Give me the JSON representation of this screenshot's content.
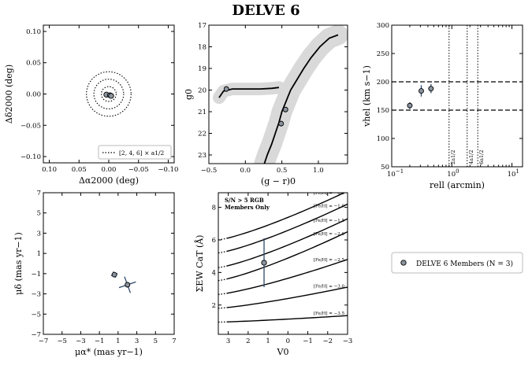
{
  "figure_title": "DELVE 6",
  "chart_data": [
    {
      "type": "scatter",
      "name": "spatial",
      "xlabel": "Δα2000 (deg)",
      "ylabel": "Δδ2000 (deg)",
      "xlim": [
        0.11,
        -0.11
      ],
      "ylim": [
        -0.11,
        0.11
      ],
      "xticks": [
        0.1,
        0.05,
        0.0,
        -0.05,
        -0.1
      ],
      "xtick_labels": [
        "0.10",
        "0.05",
        "0.00",
        "−0.05",
        "−0.10"
      ],
      "yticks": [
        0.1,
        0.05,
        0.0,
        -0.05,
        -0.1
      ],
      "ytick_labels": [
        "0.10",
        "0.05",
        "0.00",
        "−0.05",
        "−0.10"
      ],
      "points": [
        {
          "x": 0.004,
          "y": -0.001
        },
        {
          "x": -0.002,
          "y": -0.002
        },
        {
          "x": -0.004,
          "y": -0.003
        }
      ],
      "circle_radii": [
        0.0125,
        0.025,
        0.0375
      ],
      "legend": "[2, 4, 6] × a1/2"
    },
    {
      "type": "scatter",
      "name": "cmd",
      "xlabel": "(g − r)0",
      "ylabel": "g0",
      "xlim": [
        -0.5,
        1.4
      ],
      "ylim": [
        23.4,
        17.0
      ],
      "xticks": [
        -0.5,
        0.0,
        0.5,
        1.0
      ],
      "xtick_labels": [
        "−0.5",
        "0.0",
        "0.5",
        "1.0"
      ],
      "yticks": [
        17,
        18,
        19,
        20,
        21,
        22,
        23
      ],
      "ytick_labels": [
        "17",
        "18",
        "19",
        "20",
        "21",
        "22",
        "23"
      ],
      "points": [
        {
          "x": -0.26,
          "y": 19.95
        },
        {
          "x": 0.55,
          "y": 20.9
        },
        {
          "x": 0.49,
          "y": 21.55
        }
      ],
      "isochrone_rgb": [
        [
          0.26,
          23.4
        ],
        [
          0.3,
          23.0
        ],
        [
          0.36,
          22.5
        ],
        [
          0.41,
          22.0
        ],
        [
          0.46,
          21.5
        ],
        [
          0.5,
          21.0
        ],
        [
          0.56,
          20.5
        ],
        [
          0.62,
          20.0
        ],
        [
          0.71,
          19.5
        ],
        [
          0.8,
          19.0
        ],
        [
          0.9,
          18.5
        ],
        [
          1.02,
          18.0
        ],
        [
          1.15,
          17.6
        ],
        [
          1.27,
          17.45
        ]
      ],
      "isochrone_hb": [
        [
          -0.36,
          20.35
        ],
        [
          -0.3,
          20.05
        ],
        [
          -0.18,
          19.95
        ],
        [
          0.0,
          19.95
        ],
        [
          0.2,
          19.95
        ],
        [
          0.36,
          19.92
        ],
        [
          0.46,
          19.88
        ]
      ]
    },
    {
      "type": "scatter",
      "name": "velocity-radius",
      "xlabel": "rell (arcmin)",
      "ylabel": "vhel (km s−1)",
      "xscale": "log",
      "xlim": [
        0.1,
        15
      ],
      "ylim": [
        50,
        300
      ],
      "xtick_labels": [
        "10−1",
        "100",
        "101"
      ],
      "yticks": [
        50,
        100,
        150,
        200,
        250,
        300
      ],
      "ytick_labels": [
        "50",
        "100",
        "150",
        "200",
        "250",
        "300"
      ],
      "points": [
        {
          "x": 0.2,
          "y": 158,
          "yerr": 6
        },
        {
          "x": 0.31,
          "y": 184,
          "yerr": 10
        },
        {
          "x": 0.45,
          "y": 188,
          "yerr": 8
        }
      ],
      "hlines": [
        200,
        150
      ],
      "vlines": [
        {
          "x": 0.9,
          "label": "2a1/2"
        },
        {
          "x": 1.8,
          "label": "4a1/2"
        },
        {
          "x": 2.7,
          "label": "6a1/2"
        }
      ]
    },
    {
      "type": "scatter",
      "name": "proper-motion",
      "xlabel": "μα* (mas yr−1)",
      "ylabel": "μδ (mas yr−1)",
      "xlim": [
        -7,
        7
      ],
      "ylim": [
        -7,
        7
      ],
      "xticks": [
        -7,
        -5,
        -3,
        -1,
        1,
        3,
        5,
        7
      ],
      "xtick_labels": [
        "−7",
        "−5",
        "−3",
        "−1",
        "1",
        "3",
        "5",
        "7"
      ],
      "yticks": [
        -7,
        -5,
        -3,
        -1,
        1,
        3,
        5,
        7
      ],
      "ytick_labels": [
        "−7",
        "−5",
        "−3",
        "−1",
        "1",
        "3",
        "5",
        "7"
      ],
      "points": [
        {
          "x": 0.6,
          "y": -1.1,
          "xerr": 0.35,
          "yerr": 0.3
        },
        {
          "x": 2.0,
          "y": -2.1,
          "xerr": 0.9,
          "yerr": 0.8
        }
      ]
    },
    {
      "type": "line",
      "name": "ew-v0",
      "xlabel": "V0",
      "ylabel": "ΣEW CaT (Å)",
      "xlim": [
        3.5,
        -3.0
      ],
      "ylim": [
        0.2,
        8.9
      ],
      "xticks": [
        3,
        2,
        1,
        0,
        -1,
        -2,
        -3
      ],
      "xtick_labels": [
        "3",
        "2",
        "1",
        "0",
        "−1",
        "−2",
        "−3"
      ],
      "yticks": [
        2,
        4,
        6,
        8
      ],
      "ytick_labels": [
        "2",
        "4",
        "6",
        "8"
      ],
      "annotation": [
        "S/N > 5 RGB",
        "Members Only"
      ],
      "metallicity_lines": [
        {
          "label": "[Fe/H] = −0.5",
          "y_at_35": 6.0,
          "y_at_m3": 9.0
        },
        {
          "label": "[Fe/H] = −1.0",
          "y_at_35": 5.2,
          "y_at_m3": 8.2
        },
        {
          "label": "[Fe/H] = −1.5",
          "y_at_35": 4.3,
          "y_at_m3": 7.3
        },
        {
          "label": "[Fe/H] = −2.0",
          "y_at_35": 3.5,
          "y_at_m3": 6.5
        },
        {
          "label": "[Fe/H] = −2.5",
          "y_at_35": 2.65,
          "y_at_m3": 4.8
        },
        {
          "label": "[Fe/H] = −3.0",
          "y_at_35": 1.8,
          "y_at_m3": 3.1
        },
        {
          "label": "[Fe/H] = −3.5",
          "y_at_35": 0.95,
          "y_at_m3": 1.35
        }
      ],
      "points": [
        {
          "x": 1.2,
          "y": 4.6,
          "yerr": 1.5
        }
      ]
    }
  ],
  "legend_box": {
    "label": "DELVE 6 Members (N = 3)"
  },
  "colors": {
    "point_fill": "#8a94a0",
    "error_bar": "#2d4a6b",
    "band": "#d9d9d9",
    "met_label": "#999999"
  }
}
